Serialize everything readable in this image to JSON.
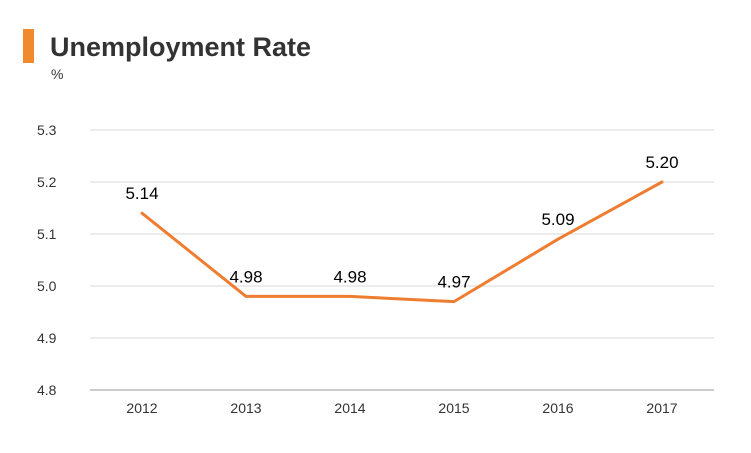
{
  "chart_data": {
    "type": "line",
    "title": "Unemployment Rate",
    "ylabel": "%",
    "xlabel": "",
    "categories": [
      "2012",
      "2013",
      "2014",
      "2015",
      "2016",
      "2017"
    ],
    "series": [
      {
        "values": [
          5.14,
          4.98,
          4.98,
          4.97,
          5.09,
          5.2
        ],
        "labels": [
          "5.14",
          "4.98",
          "4.98",
          "4.97",
          "5.09",
          "5.20"
        ],
        "color": "#ee7d31"
      }
    ],
    "ylim": [
      4.8,
      5.3
    ],
    "yticks": [
      "4.8",
      "4.9",
      "5.0",
      "5.1",
      "5.2",
      "5.3"
    ],
    "grid": true,
    "accent": "#f08a2c"
  }
}
